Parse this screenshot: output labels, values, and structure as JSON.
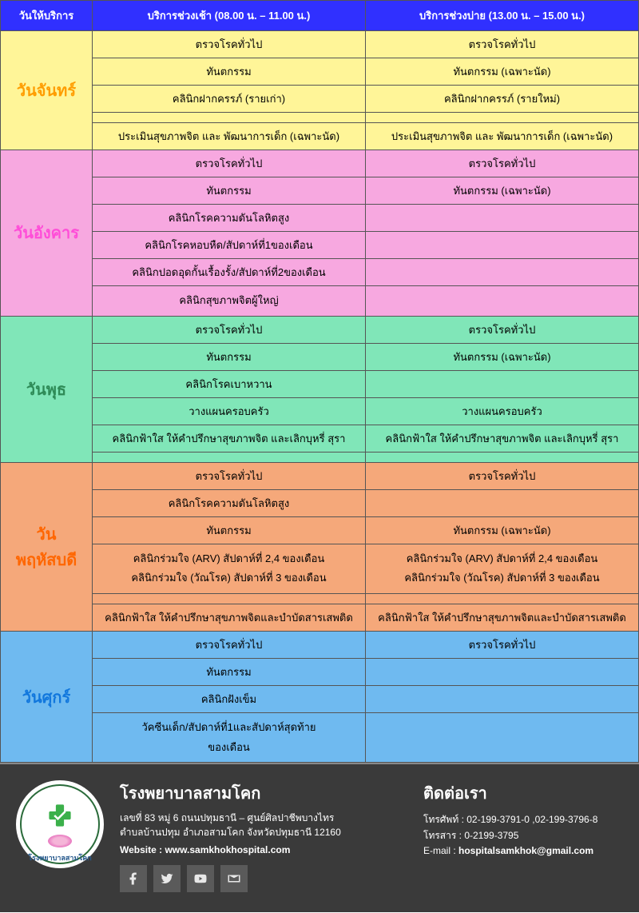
{
  "colors": {
    "header_bg": "#3030ff",
    "monday_bg": "#fff598",
    "tuesday_bg": "#f7a8e0",
    "wednesday_bg": "#80e6b8",
    "thursday_bg": "#f5a87a",
    "friday_bg": "#6fbaf0"
  },
  "headers": {
    "day": "วันให้บริการ",
    "morning": "บริการช่วงเช้า (08.00 น. – 11.00 น.)",
    "afternoon": "บริการช่วงบ่าย (13.00 น.  – 15.00 น.)"
  },
  "monday": {
    "name": "วันจันทร์",
    "rows": [
      {
        "m": "ตรวจโรคทั่วไป",
        "a": "ตรวจโรคทั่วไป"
      },
      {
        "m": "ทันตกรรม",
        "a": "ทันตกรรม (เฉพาะนัด)"
      },
      {
        "m": "คลินิกฝากครรภ์ (รายเก่า)",
        "a": "คลินิกฝากครรภ์ (รายใหม่)"
      },
      {
        "m": "",
        "a": ""
      },
      {
        "m": "ประเมินสุขภาพจิต และ พัฒนาการเด็ก (เฉพาะนัด)",
        "a": "ประเมินสุขภาพจิต และ พัฒนาการเด็ก (เฉพาะนัด)"
      }
    ]
  },
  "tuesday": {
    "name": "วันอังคาร",
    "rows": [
      {
        "m": "ตรวจโรคทั่วไป",
        "a": "ตรวจโรคทั่วไป"
      },
      {
        "m": "ทันตกรรม",
        "a": "ทันตกรรม (เฉพาะนัด)"
      },
      {
        "m": "คลินิกโรคความดันโลหิตสูง",
        "a": ""
      },
      {
        "m": "คลินิกโรคหอบหืด/สัปดาห์ที่1ของเดือน",
        "a": ""
      },
      {
        "m": "คลินิกปอดอุดกั้นเรื้องรั้ง/สัปดาห์ที่2ของเดือน",
        "a": ""
      }
    ],
    "lastrow_m": "คลินิกสุขภาพจิตผู้ใหญ่"
  },
  "wednesday": {
    "name": "วันพุธ",
    "rows": [
      {
        "m": "ตรวจโรคทั่วไป",
        "a": "ตรวจโรคทั่วไป"
      },
      {
        "m": "ทันตกรรม",
        "a": "ทันตกรรม (เฉพาะนัด)"
      },
      {
        "m": "คลินิกโรคเบาหวาน",
        "a": ""
      },
      {
        "m": "วางแผนครอบครัว",
        "a": "วางแผนครอบครัว"
      },
      {
        "m": "คลินิกฟ้าใส ให้คำปรึกษาสุขภาพจิต และเลิกบุหรี่ สุรา",
        "a": "คลินิกฟ้าใส ให้คำปรึกษาสุขภาพจิต และเลิกบุหรี่ สุรา"
      },
      {
        "m": "",
        "a": ""
      }
    ]
  },
  "thursday": {
    "name": "วัน\nพฤหัสบดี",
    "rows": [
      {
        "m": "ตรวจโรคทั่วไป",
        "a": "ตรวจโรคทั่วไป"
      },
      {
        "m": "คลินิกโรคความดันโลหิตสูง",
        "a": ""
      },
      {
        "m": "ทันตกรรม",
        "a": "ทันตกรรม (เฉพาะนัด)"
      }
    ],
    "multirow_m": "คลินิกร่วมใจ (ARV) สัปดาห์ที่ 2,4 ของเดือน\nคลินิกร่วมใจ (วัณโรค) สัปดาห์ที่ 3 ของเดือน",
    "multirow_a": "คลินิกร่วมใจ (ARV) สัปดาห์ที่ 2,4 ของเดือน\nคลินิกร่วมใจ (วัณโรค) สัปดาห์ที่ 3 ของเดือน",
    "lastrows": [
      {
        "m": "",
        "a": ""
      },
      {
        "m": "คลินิกฟ้าใส ให้คำปรึกษาสุขภาพจิตและบำบัดสารเสพติด",
        "a": "คลินิกฟ้าใส ให้คำปรึกษาสุขภาพจิตและบำบัดสารเสพติด"
      }
    ]
  },
  "friday": {
    "name": "วันศุกร์",
    "rows": [
      {
        "m": "ตรวจโรคทั่วไป",
        "a": "ตรวจโรคทั่วไป"
      },
      {
        "m": "ทันตกรรม",
        "a": ""
      },
      {
        "m": "คลินิกฝังเข็ม",
        "a": ""
      }
    ],
    "lastrow_m": "วัคซีนเด็ก/สัปดาห์ที่1และสัปดาห์สุดท้าย\nของเดือน"
  },
  "footer": {
    "hospital_name": "โรงพยาบาลสามโคก",
    "address_line1": "เลขที่ 83 หมู่ 6 ถนนปทุมธานี – ศูนย์ศิลปาชีพบางไทร",
    "address_line2": "ตำบลบ้านปทุม อำเภอสามโคก จังหวัดปทุมธานี 12160",
    "website_label": "Website :",
    "website_value": "www.samkhokhospital.com",
    "logo_text": "โรงพยาบาลสามโคก",
    "contact_title": "ติดต่อเรา",
    "phone_label": "โทรศัพท์ :",
    "phone_value": "02-199-3791-0 ,02-199-3796-8",
    "fax_label": "โทรสาร :",
    "fax_value": "0-2199-3795",
    "email_label": "E-mail :",
    "email_value": "hospitalsamkhok@gmail.com"
  }
}
